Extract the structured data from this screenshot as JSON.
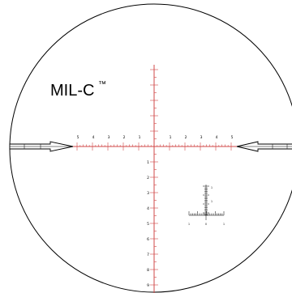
{
  "reticle": {
    "name": "MIL-C",
    "trademark": "™",
    "colors": {
      "crosshair": "#d04848",
      "outline": "#000000",
      "background": "#ffffff"
    },
    "horizontal_labels_left": [
      "5",
      "4",
      "3",
      "2",
      "1"
    ],
    "horizontal_labels_right": [
      "1",
      "2",
      "3",
      "4",
      "5"
    ],
    "vertical_labels_below": [
      "1",
      "2",
      "3",
      "4",
      "5",
      "6",
      "7",
      "8",
      "9"
    ],
    "ranging_grid": {
      "vertical_labels": [
        "1",
        "1"
      ],
      "horizontal_labels": [
        "1",
        "0",
        "1"
      ]
    }
  }
}
